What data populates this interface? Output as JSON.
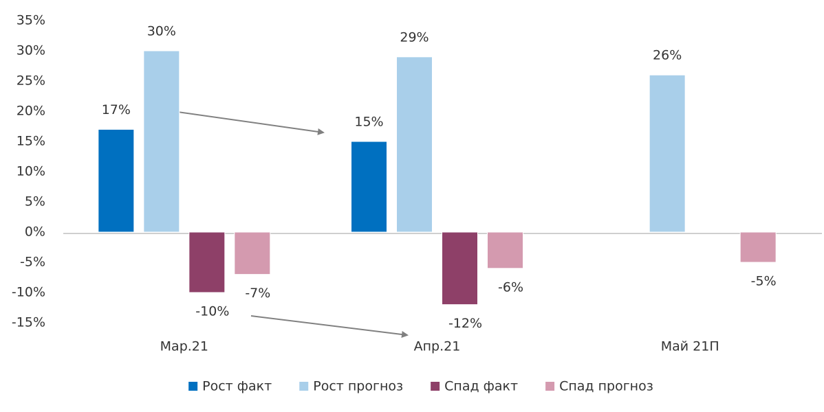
{
  "chart_data": {
    "type": "bar",
    "categories": [
      "Мар.21",
      "Апр.21",
      "Май 21П"
    ],
    "series": [
      {
        "name": "Рост факт",
        "color": "#0070c0",
        "values": [
          17,
          15,
          null
        ],
        "value_labels": [
          "17%",
          "15%",
          null
        ]
      },
      {
        "name": "Рост прогноз",
        "color": "#a9cfea",
        "values": [
          30,
          29,
          26
        ],
        "value_labels": [
          "30%",
          "29%",
          "26%"
        ]
      },
      {
        "name": "Спад факт",
        "color": "#8e4068",
        "values": [
          -10,
          -12,
          null
        ],
        "value_labels": [
          "-10%",
          "-12%",
          null
        ]
      },
      {
        "name": "Спад прогноз",
        "color": "#d49aaf",
        "values": [
          -7,
          -6,
          -5
        ],
        "value_labels": [
          "-7%",
          "-6%",
          "-5%"
        ]
      }
    ],
    "ylim": [
      -15,
      35
    ],
    "yticks": [
      {
        "value": -15,
        "label": "-15%"
      },
      {
        "value": -10,
        "label": "-10%"
      },
      {
        "value": -5,
        "label": "-5%"
      },
      {
        "value": 0,
        "label": "0%"
      },
      {
        "value": 5,
        "label": "5%"
      },
      {
        "value": 10,
        "label": "10%"
      },
      {
        "value": 15,
        "label": "15%"
      },
      {
        "value": 20,
        "label": "20%"
      },
      {
        "value": 25,
        "label": "25%"
      },
      {
        "value": 30,
        "label": "30%"
      },
      {
        "value": 35,
        "label": "35%"
      }
    ],
    "grid": false,
    "legend": "bottom"
  }
}
